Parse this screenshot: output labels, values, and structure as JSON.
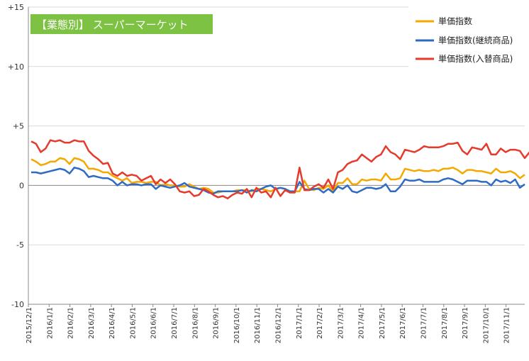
{
  "chart_data": {
    "type": "line",
    "title": "【業態別】 スーパーマーケット",
    "xlabel": "",
    "ylabel": "",
    "ylim": [
      -10,
      15
    ],
    "y_ticks": [
      15,
      10,
      5,
      0,
      -5,
      -10
    ],
    "y_tick_labels": [
      "+15",
      "+10",
      "+5",
      "0",
      "-5",
      "-10"
    ],
    "x_tick_labels": [
      "2015/12/1",
      "2016/1/1",
      "2016/2/1",
      "2016/3/1",
      "2016/4/1",
      "2016/5/1",
      "2016/6/1",
      "2016/7/1",
      "2016/8/1",
      "2016/9/1",
      "2016/10/1",
      "2016/11/1",
      "2016/12/1",
      "2017/1/1",
      "2017/2/1",
      "2017/3/1",
      "2017/4/1",
      "2017/5/1",
      "2017/6/1",
      "2017/7/1",
      "2017/8/1",
      "2017/9/1",
      "2017/10/1",
      "2017/11/1"
    ],
    "grid": "horizontal",
    "legend_position": "top-right",
    "series": [
      {
        "name": "単価指数",
        "color": "#f5a800",
        "values": [
          2.2,
          2.0,
          1.7,
          1.8,
          2.0,
          2.0,
          2.3,
          2.2,
          1.8,
          2.3,
          2.2,
          2.0,
          1.4,
          1.4,
          1.3,
          1.1,
          1.1,
          0.8,
          0.6,
          0.4,
          0.6,
          0.2,
          0.3,
          0.3,
          0.2,
          0.3,
          0.3,
          0.0,
          0.1,
          0.0,
          0.0,
          -0.1,
          -0.1,
          0.1,
          -0.1,
          -0.3,
          -0.2,
          -0.3,
          -0.6,
          -0.6,
          -0.5,
          -0.5,
          -0.5,
          -0.4,
          -0.4,
          -0.4,
          -0.5,
          -0.3,
          -0.3,
          -0.4,
          -0.5,
          -0.3,
          -0.2,
          -0.3,
          -0.6,
          -0.5,
          -0.5,
          0.4,
          -0.3,
          -0.4,
          -0.2,
          -0.3,
          0.0,
          -0.5,
          0.2,
          0.2,
          0.6,
          0.1,
          0.1,
          0.5,
          0.4,
          0.5,
          0.5,
          0.4,
          1.0,
          0.5,
          0.5,
          0.6,
          1.4,
          1.3,
          1.2,
          1.3,
          1.2,
          1.2,
          1.3,
          1.2,
          1.4,
          1.4,
          1.5,
          1.3,
          1.0,
          1.3,
          1.3,
          1.2,
          1.2,
          1.1,
          1.0,
          1.4,
          1.1,
          1.1,
          1.2,
          1.0,
          0.6,
          0.9
        ]
      },
      {
        "name": "単価指数(継続商品)",
        "color": "#2e6bc4",
        "values": [
          1.1,
          1.1,
          1.0,
          1.1,
          1.2,
          1.3,
          1.4,
          1.3,
          1.0,
          1.5,
          1.4,
          1.2,
          0.7,
          0.8,
          0.7,
          0.6,
          0.6,
          0.4,
          0.0,
          0.3,
          0.0,
          0.1,
          0.1,
          0.0,
          0.1,
          0.1,
          -0.3,
          0.0,
          -0.1,
          -0.2,
          -0.1,
          0.0,
          0.2,
          -0.1,
          -0.2,
          -0.3,
          -0.4,
          -0.6,
          -0.7,
          -0.5,
          -0.5,
          -0.5,
          -0.5,
          -0.5,
          -0.4,
          -0.6,
          -0.4,
          -0.5,
          -0.3,
          -0.1,
          0.0,
          -0.3,
          -0.2,
          -0.3,
          -0.5,
          -0.5,
          0.3,
          -0.3,
          -0.4,
          -0.3,
          -0.3,
          -0.6,
          -0.3,
          -0.6,
          -0.1,
          -0.3,
          0.0,
          -0.5,
          -0.6,
          -0.4,
          -0.2,
          -0.2,
          -0.3,
          -0.2,
          0.1,
          -0.5,
          -0.5,
          -0.1,
          0.5,
          0.4,
          0.4,
          0.5,
          0.3,
          0.3,
          0.3,
          0.3,
          0.5,
          0.6,
          0.5,
          0.3,
          0.1,
          0.4,
          0.4,
          0.4,
          0.3,
          0.3,
          0.0,
          0.5,
          0.3,
          0.4,
          0.2,
          0.5,
          -0.2,
          0.1
        ]
      },
      {
        "name": "単価指数(入替商品)",
        "color": "#e53a2c",
        "values": [
          3.7,
          3.5,
          2.8,
          3.1,
          3.8,
          3.7,
          3.8,
          3.6,
          3.6,
          3.8,
          3.7,
          3.7,
          2.9,
          2.5,
          2.2,
          1.8,
          1.9,
          1.0,
          0.8,
          1.1,
          0.8,
          0.9,
          0.8,
          0.4,
          0.6,
          0.8,
          0.1,
          0.5,
          0.2,
          0.5,
          0.1,
          -0.5,
          -0.6,
          -0.5,
          -0.9,
          -0.8,
          -0.3,
          -0.5,
          -0.8,
          -1.0,
          -0.9,
          -1.1,
          -0.8,
          -0.6,
          -0.7,
          -0.3,
          -1.0,
          -0.2,
          -0.6,
          -0.5,
          -1.0,
          -0.2,
          -0.9,
          -0.4,
          -0.6,
          -0.6,
          1.5,
          -0.4,
          -0.4,
          -0.1,
          0.1,
          -0.2,
          0.5,
          -0.3,
          1.1,
          1.3,
          1.8,
          2.0,
          2.1,
          2.6,
          2.3,
          2.0,
          2.4,
          2.6,
          3.3,
          2.8,
          2.6,
          2.2,
          3.0,
          2.9,
          2.8,
          3.0,
          3.3,
          3.2,
          3.2,
          3.2,
          3.3,
          3.5,
          3.5,
          3.6,
          2.9,
          2.6,
          3.2,
          3.1,
          3.0,
          3.5,
          2.6,
          2.6,
          3.1,
          2.8,
          3.0,
          3.0,
          2.9,
          2.3,
          2.8
        ]
      }
    ]
  }
}
